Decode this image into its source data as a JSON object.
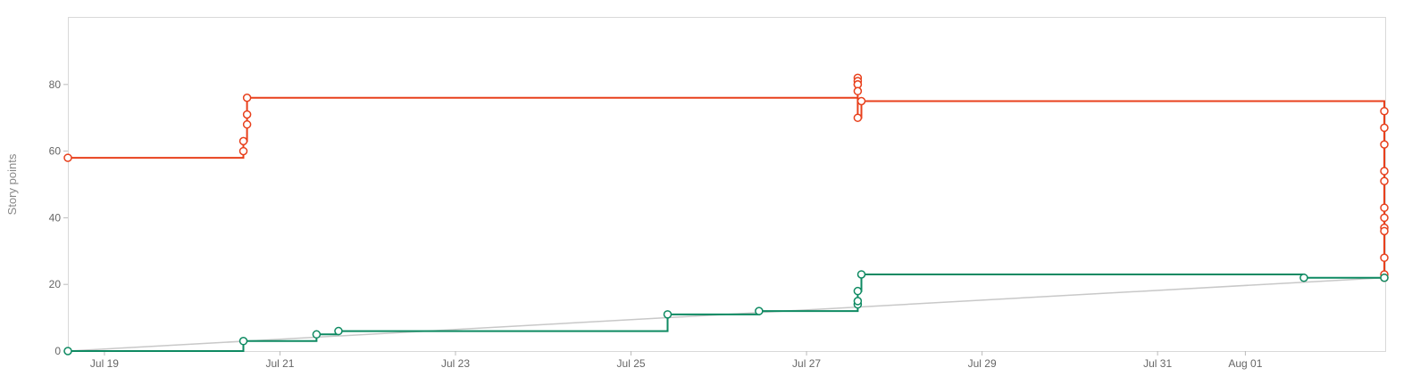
{
  "chart_data": {
    "type": "line",
    "step": true,
    "ylabel": "Story points",
    "xlabel": "",
    "ylim": [
      0,
      100
    ],
    "y_ticks": [
      0,
      20,
      40,
      60,
      80
    ],
    "x_start": "2023-07-18T14:00",
    "x_end": "2023-08-02T14:00",
    "x_ticks": [
      {
        "at": "2023-07-19T00:00",
        "label": "Jul 19"
      },
      {
        "at": "2023-07-21T00:00",
        "label": "Jul 21"
      },
      {
        "at": "2023-07-23T00:00",
        "label": "Jul 23"
      },
      {
        "at": "2023-07-25T00:00",
        "label": "Jul 25"
      },
      {
        "at": "2023-07-27T00:00",
        "label": "Jul 27"
      },
      {
        "at": "2023-07-29T00:00",
        "label": "Jul 29"
      },
      {
        "at": "2023-07-31T00:00",
        "label": "Jul 31"
      },
      {
        "at": "2023-08-01T00:00",
        "label": "Aug 01"
      }
    ],
    "grid": false,
    "series": [
      {
        "name": "",
        "color": "#e8401c",
        "style": "step",
        "markers": true,
        "points": [
          {
            "x": "2023-07-18T14:00",
            "y": 58
          },
          {
            "x": "2023-07-20T14:00",
            "y": 60
          },
          {
            "x": "2023-07-20T14:00",
            "y": 63
          },
          {
            "x": "2023-07-20T15:00",
            "y": 68
          },
          {
            "x": "2023-07-20T15:00",
            "y": 71
          },
          {
            "x": "2023-07-20T15:00",
            "y": 76
          },
          {
            "x": "2023-07-27T14:00",
            "y": 82
          },
          {
            "x": "2023-07-27T14:00",
            "y": 81
          },
          {
            "x": "2023-07-27T14:00",
            "y": 80
          },
          {
            "x": "2023-07-27T14:00",
            "y": 80
          },
          {
            "x": "2023-07-27T14:00",
            "y": 78
          },
          {
            "x": "2023-07-27T14:00",
            "y": 70
          },
          {
            "x": "2023-07-27T15:00",
            "y": 75
          },
          {
            "x": "2023-08-02T14:00",
            "y": 72
          },
          {
            "x": "2023-08-02T14:00",
            "y": 67
          },
          {
            "x": "2023-08-02T14:00",
            "y": 62
          },
          {
            "x": "2023-08-02T14:00",
            "y": 54
          },
          {
            "x": "2023-08-02T14:00",
            "y": 51
          },
          {
            "x": "2023-08-02T14:00",
            "y": 43
          },
          {
            "x": "2023-08-02T14:00",
            "y": 40
          },
          {
            "x": "2023-08-02T14:00",
            "y": 37
          },
          {
            "x": "2023-08-02T14:00",
            "y": 36
          },
          {
            "x": "2023-08-02T14:00",
            "y": 28
          },
          {
            "x": "2023-08-02T14:00",
            "y": 23
          },
          {
            "x": "2023-08-02T14:00",
            "y": 22
          }
        ]
      },
      {
        "name": "",
        "color": "#0e8a62",
        "style": "step",
        "markers": true,
        "points": [
          {
            "x": "2023-07-18T14:00",
            "y": 0
          },
          {
            "x": "2023-07-20T14:00",
            "y": 3
          },
          {
            "x": "2023-07-21T10:00",
            "y": 5
          },
          {
            "x": "2023-07-21T16:00",
            "y": 6
          },
          {
            "x": "2023-07-25T10:00",
            "y": 11
          },
          {
            "x": "2023-07-26T11:00",
            "y": 12
          },
          {
            "x": "2023-07-27T14:00",
            "y": 14
          },
          {
            "x": "2023-07-27T14:00",
            "y": 15
          },
          {
            "x": "2023-07-27T14:00",
            "y": 18
          },
          {
            "x": "2023-07-27T15:00",
            "y": 23
          },
          {
            "x": "2023-08-01T16:00",
            "y": 22
          },
          {
            "x": "2023-08-02T14:00",
            "y": 22
          }
        ]
      },
      {
        "name": "",
        "color": "#c8c8c8",
        "style": "straight",
        "markers": false,
        "points": [
          {
            "x": "2023-07-18T14:00",
            "y": 0
          },
          {
            "x": "2023-08-02T14:00",
            "y": 22
          }
        ]
      }
    ]
  }
}
